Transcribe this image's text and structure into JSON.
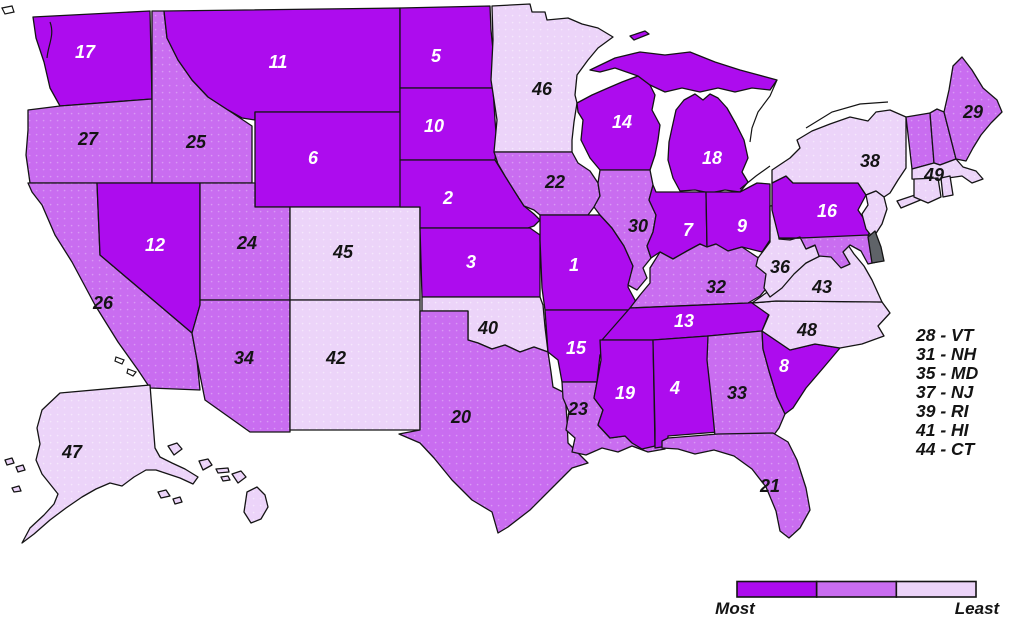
{
  "map": {
    "name": "US states ranked choropleth",
    "states": [
      {
        "abbr": "WA",
        "rank": "17",
        "tier": "most"
      },
      {
        "abbr": "OR",
        "rank": "27",
        "tier": "mid"
      },
      {
        "abbr": "CA",
        "rank": "26",
        "tier": "mid"
      },
      {
        "abbr": "ID",
        "rank": "25",
        "tier": "mid"
      },
      {
        "abbr": "NV",
        "rank": "12",
        "tier": "most"
      },
      {
        "abbr": "MT",
        "rank": "11",
        "tier": "most"
      },
      {
        "abbr": "WY",
        "rank": "6",
        "tier": "most"
      },
      {
        "abbr": "UT",
        "rank": "24",
        "tier": "mid"
      },
      {
        "abbr": "CO",
        "rank": "45",
        "tier": "least"
      },
      {
        "abbr": "AZ",
        "rank": "34",
        "tier": "mid"
      },
      {
        "abbr": "NM",
        "rank": "42",
        "tier": "least"
      },
      {
        "abbr": "ND",
        "rank": "5",
        "tier": "most"
      },
      {
        "abbr": "SD",
        "rank": "10",
        "tier": "most"
      },
      {
        "abbr": "NE",
        "rank": "2",
        "tier": "most"
      },
      {
        "abbr": "KS",
        "rank": "3",
        "tier": "most"
      },
      {
        "abbr": "OK",
        "rank": "40",
        "tier": "least"
      },
      {
        "abbr": "TX",
        "rank": "20",
        "tier": "mid"
      },
      {
        "abbr": "MN",
        "rank": "46",
        "tier": "least"
      },
      {
        "abbr": "IA",
        "rank": "22",
        "tier": "mid"
      },
      {
        "abbr": "MO",
        "rank": "1",
        "tier": "most"
      },
      {
        "abbr": "AR",
        "rank": "15",
        "tier": "most"
      },
      {
        "abbr": "LA",
        "rank": "23",
        "tier": "mid"
      },
      {
        "abbr": "WI",
        "rank": "14",
        "tier": "most"
      },
      {
        "abbr": "IL",
        "rank": "30",
        "tier": "mid"
      },
      {
        "abbr": "MI",
        "rank": "18",
        "tier": "most"
      },
      {
        "abbr": "IN",
        "rank": "7",
        "tier": "most"
      },
      {
        "abbr": "OH",
        "rank": "9",
        "tier": "most"
      },
      {
        "abbr": "KY",
        "rank": "32",
        "tier": "mid"
      },
      {
        "abbr": "TN",
        "rank": "13",
        "tier": "most"
      },
      {
        "abbr": "MS",
        "rank": "19",
        "tier": "most"
      },
      {
        "abbr": "AL",
        "rank": "4",
        "tier": "most"
      },
      {
        "abbr": "GA",
        "rank": "33",
        "tier": "mid"
      },
      {
        "abbr": "FL",
        "rank": "21",
        "tier": "mid"
      },
      {
        "abbr": "SC",
        "rank": "8",
        "tier": "most"
      },
      {
        "abbr": "NC",
        "rank": "48",
        "tier": "least"
      },
      {
        "abbr": "VA",
        "rank": "43",
        "tier": "least"
      },
      {
        "abbr": "WV",
        "rank": "36",
        "tier": "least"
      },
      {
        "abbr": "PA",
        "rank": "16",
        "tier": "most"
      },
      {
        "abbr": "NY",
        "rank": "38",
        "tier": "least"
      },
      {
        "abbr": "NJ",
        "rank": "37",
        "tier": "least"
      },
      {
        "abbr": "MD",
        "rank": "35",
        "tier": "mid"
      },
      {
        "abbr": "DE",
        "rank": "",
        "tier": "no_data"
      },
      {
        "abbr": "VT",
        "rank": "28",
        "tier": "mid"
      },
      {
        "abbr": "NH",
        "rank": "31",
        "tier": "mid"
      },
      {
        "abbr": "MA",
        "rank": "49",
        "tier": "least"
      },
      {
        "abbr": "CT",
        "rank": "44",
        "tier": "least"
      },
      {
        "abbr": "RI",
        "rank": "39",
        "tier": "least"
      },
      {
        "abbr": "ME",
        "rank": "29",
        "tier": "mid"
      },
      {
        "abbr": "AK",
        "rank": "47",
        "tier": "least"
      },
      {
        "abbr": "HI",
        "rank": "41",
        "tier": "least"
      }
    ]
  },
  "side_legend": {
    "items": [
      "28 - VT",
      "31 - NH",
      "35 - MD",
      "37 - NJ",
      "39 - RI",
      "41 - HI",
      "44 - CT"
    ]
  },
  "scale_legend": {
    "most_label": "Most",
    "least_label": "Least",
    "tiers": [
      {
        "name": "most",
        "color": "#ad0cee"
      },
      {
        "name": "mid",
        "color": "#c96df0"
      },
      {
        "name": "least",
        "color": "#ecd4f9"
      }
    ],
    "no_data_color": "#5f6368"
  },
  "colors": {
    "background": "#ffffff",
    "border": "#141414",
    "label_on_dark": "#ffffff",
    "label_on_light": "#141414"
  }
}
